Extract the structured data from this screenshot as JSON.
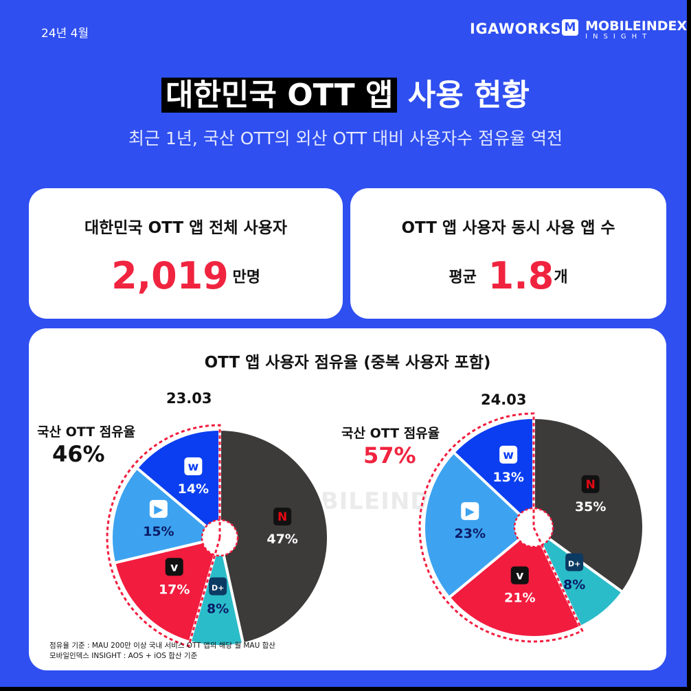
{
  "header": {
    "date": "24년 4월",
    "brand_igaworks": "IGAWORKS",
    "brand_mobileindex": "MOBILEINDEX",
    "brand_insight": "INSIGHT"
  },
  "title": {
    "highlight": "대한민국 OTT 앱",
    "rest": " 사용 현황"
  },
  "subtitle": "최근 1년, 국산 OTT의 외산 OTT 대비 사용자수 점유율 역전",
  "stats": {
    "total_users": {
      "label": "대한민국 OTT 앱 전체 사용자",
      "value": "2,019",
      "unit": "만명"
    },
    "avg_apps": {
      "label": "OTT 앱 사용자 동시 사용 앱 수",
      "prefix": "평균",
      "value": "1.8",
      "unit": "개"
    }
  },
  "colors": {
    "background": "#2f4ff0",
    "accent_red": "#f0243f",
    "netflix": "#3d3a3a",
    "disney": "#2bbcc9",
    "tving": "#f21c3e",
    "coupang": "#3da3f0",
    "wavve": "#0a3ef0"
  },
  "chart_title": "OTT 앱 사용자 점유율 (중복 사용자 포함)",
  "watermark": "MOBILEINDEX",
  "footnote": {
    "line1": "점유율 기준 : MAU 200만 이상 국내 서비스 OTT 앱의 해당 월 MAU 합산",
    "line2": "모바일인덱스 INSIGHT : AOS + iOS 합산 기준"
  },
  "chart_data": [
    {
      "type": "pie",
      "title": "23.03",
      "domestic_share_label": "국산 OTT 점유율",
      "domestic_share": "46%",
      "slices": [
        {
          "icon": "netflix-icon",
          "value": 47,
          "label": "47%",
          "color": "#3d3a3a"
        },
        {
          "icon": "disney-plus-icon",
          "value": 8,
          "label": "8%",
          "color": "#2bbcc9"
        },
        {
          "icon": "tving-icon",
          "value": 17,
          "label": "17%",
          "color": "#f21c3e"
        },
        {
          "icon": "coupang-play-icon",
          "value": 15,
          "label": "15%",
          "color": "#3da3f0"
        },
        {
          "icon": "wavve-icon",
          "value": 14,
          "label": "14%",
          "color": "#0a3ef0"
        }
      ]
    },
    {
      "type": "pie",
      "title": "24.03",
      "domestic_share_label": "국산 OTT 점유율",
      "domestic_share": "57%",
      "slices": [
        {
          "icon": "netflix-icon",
          "value": 35,
          "label": "35%",
          "color": "#3d3a3a"
        },
        {
          "icon": "disney-plus-icon",
          "value": 8,
          "label": "8%",
          "color": "#2bbcc9"
        },
        {
          "icon": "tving-icon",
          "value": 21,
          "label": "21%",
          "color": "#f21c3e"
        },
        {
          "icon": "coupang-play-icon",
          "value": 23,
          "label": "23%",
          "color": "#3da3f0"
        },
        {
          "icon": "wavve-icon",
          "value": 13,
          "label": "13%",
          "color": "#0a3ef0"
        }
      ]
    }
  ]
}
